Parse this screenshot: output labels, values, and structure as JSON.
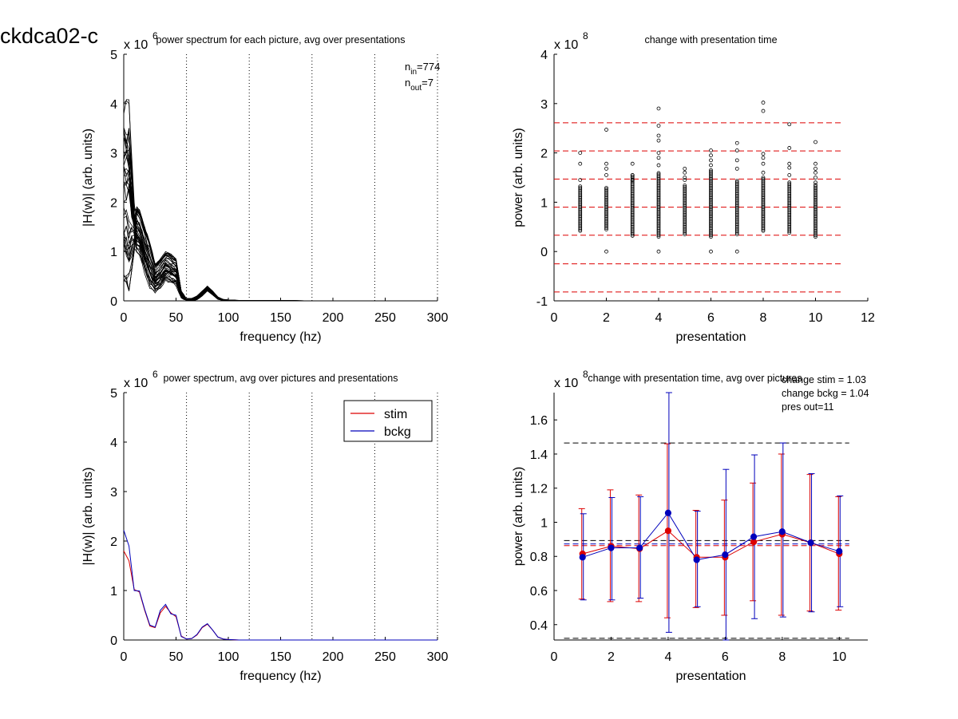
{
  "figure": {
    "title": "ckdca02-c"
  },
  "chart_data": [
    {
      "type": "line",
      "title": "power spectrum for each picture, avg over presentations",
      "xlabel": "frequency (hz)",
      "ylabel": "|H(w)| (arb. units)",
      "exponent_base": "x 10",
      "exponent_power": "6",
      "xlim": [
        0,
        300
      ],
      "ylim": [
        0,
        5
      ],
      "xticks": [
        "0",
        "50",
        "100",
        "150",
        "200",
        "250",
        "300"
      ],
      "yticks": [
        "0",
        "1",
        "2",
        "3",
        "4",
        "5"
      ],
      "vlines": [
        60,
        120,
        180,
        240,
        300
      ],
      "annotations": [
        {
          "main": "n",
          "sub": "in",
          "rest": "=774"
        },
        {
          "main": "n",
          "sub": "out",
          "rest": "=7"
        }
      ],
      "series_count": 40,
      "series_note": "many overlapping per-picture spectra (values in units of 1e6)",
      "envelope": {
        "x": [
          0,
          5,
          10,
          15,
          20,
          25,
          30,
          35,
          40,
          45,
          50,
          55,
          60,
          65,
          70,
          75,
          80,
          85,
          90,
          95,
          100,
          110,
          120,
          150,
          200,
          300
        ],
        "low": [
          0.4,
          0.2,
          1.0,
          0.9,
          0.55,
          0.25,
          0.15,
          0.25,
          0.4,
          0.35,
          0.3,
          0.05,
          0.0,
          0.0,
          0.02,
          0.1,
          0.2,
          0.12,
          0.03,
          0.01,
          0.0,
          0.0,
          0.0,
          0.0,
          0.0,
          0.0
        ],
        "high": [
          4.15,
          4.1,
          2.0,
          1.85,
          1.5,
          1.2,
          0.75,
          0.85,
          1.0,
          0.95,
          0.85,
          0.2,
          0.05,
          0.05,
          0.1,
          0.2,
          0.3,
          0.2,
          0.08,
          0.03,
          0.02,
          0.01,
          0.01,
          0.005,
          0.0,
          0.0
        ]
      }
    },
    {
      "type": "scatter",
      "title": "change with presentation time",
      "xlabel": "presentation",
      "ylabel": "power (arb. units)",
      "exponent_base": "x 10",
      "exponent_power": "8",
      "xlim": [
        0,
        12
      ],
      "ylim": [
        -1,
        4
      ],
      "xticks": [
        "0",
        "2",
        "4",
        "6",
        "8",
        "10",
        "12"
      ],
      "yticks": [
        "-1",
        "0",
        "1",
        "2",
        "3",
        "4"
      ],
      "hlines": [
        2.61,
        2.04,
        1.47,
        0.9,
        0.33,
        -0.25,
        -0.82
      ],
      "hline_color": "#dd0000",
      "hline_xrange": [
        0,
        11
      ],
      "column_note": "dense columns of points from ~0.45 to ~1.3 (units of 1e8) at each presentation",
      "columns": [
        {
          "x": 1,
          "lo": 0.42,
          "hi": 1.32
        },
        {
          "x": 2,
          "lo": 0.45,
          "hi": 1.3
        },
        {
          "x": 3,
          "lo": 0.32,
          "hi": 1.55
        },
        {
          "x": 4,
          "lo": 0.3,
          "hi": 1.6
        },
        {
          "x": 5,
          "lo": 0.35,
          "hi": 1.35
        },
        {
          "x": 6,
          "lo": 0.3,
          "hi": 1.65
        },
        {
          "x": 7,
          "lo": 0.35,
          "hi": 1.45
        },
        {
          "x": 8,
          "lo": 0.42,
          "hi": 1.5
        },
        {
          "x": 9,
          "lo": 0.38,
          "hi": 1.4
        },
        {
          "x": 10,
          "lo": 0.3,
          "hi": 1.35
        }
      ],
      "outliers": [
        [
          1,
          2.0
        ],
        [
          1,
          1.78
        ],
        [
          1,
          1.45
        ],
        [
          2,
          2.47
        ],
        [
          2,
          1.78
        ],
        [
          2,
          1.68
        ],
        [
          2,
          1.55
        ],
        [
          2,
          0.0
        ],
        [
          3,
          1.78
        ],
        [
          3,
          1.55
        ],
        [
          3,
          1.45
        ],
        [
          4,
          2.9
        ],
        [
          4,
          2.55
        ],
        [
          4,
          2.35
        ],
        [
          4,
          2.25
        ],
        [
          4,
          2.0
        ],
        [
          4,
          1.9
        ],
        [
          4,
          1.75
        ],
        [
          4,
          0.0
        ],
        [
          5,
          1.68
        ],
        [
          5,
          1.6
        ],
        [
          5,
          1.5
        ],
        [
          5,
          1.45
        ],
        [
          6,
          2.05
        ],
        [
          6,
          1.95
        ],
        [
          6,
          1.85
        ],
        [
          6,
          1.75
        ],
        [
          6,
          0.0
        ],
        [
          7,
          2.2
        ],
        [
          7,
          2.05
        ],
        [
          7,
          1.85
        ],
        [
          7,
          1.68
        ],
        [
          7,
          0.0
        ],
        [
          8,
          3.02
        ],
        [
          8,
          2.85
        ],
        [
          8,
          1.98
        ],
        [
          8,
          1.9
        ],
        [
          8,
          1.78
        ],
        [
          8,
          1.6
        ],
        [
          9,
          2.58
        ],
        [
          9,
          2.1
        ],
        [
          9,
          1.78
        ],
        [
          9,
          1.7
        ],
        [
          9,
          1.55
        ],
        [
          10,
          2.22
        ],
        [
          10,
          1.78
        ],
        [
          10,
          1.68
        ],
        [
          10,
          1.6
        ],
        [
          10,
          1.5
        ],
        [
          10,
          1.4
        ]
      ]
    },
    {
      "type": "line",
      "title": "power spectrum, avg over pictures and presentations",
      "xlabel": "frequency (hz)",
      "ylabel": "|H(w)| (arb. units)",
      "exponent_base": "x 10",
      "exponent_power": "6",
      "xlim": [
        0,
        300
      ],
      "ylim": [
        0,
        5
      ],
      "xticks": [
        "0",
        "50",
        "100",
        "150",
        "200",
        "250",
        "300"
      ],
      "yticks": [
        "0",
        "1",
        "2",
        "3",
        "4",
        "5"
      ],
      "vlines": [
        60,
        120,
        180,
        240,
        300
      ],
      "legend": [
        {
          "label": "stim",
          "color": "#dd0000"
        },
        {
          "label": "bckg",
          "color": "#0000bb"
        }
      ],
      "legend_position": "top-right",
      "x": [
        0,
        5,
        10,
        15,
        20,
        25,
        30,
        35,
        40,
        45,
        50,
        55,
        60,
        65,
        70,
        75,
        80,
        85,
        90,
        95,
        100,
        110,
        120,
        150,
        200,
        250,
        300
      ],
      "series": [
        {
          "name": "stim",
          "color": "#dd0000",
          "values": [
            1.8,
            1.6,
            1.02,
            0.97,
            0.6,
            0.28,
            0.25,
            0.55,
            0.68,
            0.55,
            0.47,
            0.08,
            0.02,
            0.03,
            0.1,
            0.25,
            0.32,
            0.2,
            0.06,
            0.02,
            0.01,
            0.0,
            0.0,
            0.0,
            0.0,
            0.0,
            0.0
          ]
        },
        {
          "name": "bckg",
          "color": "#0000bb",
          "values": [
            2.22,
            1.9,
            1.0,
            0.99,
            0.62,
            0.3,
            0.26,
            0.6,
            0.72,
            0.53,
            0.5,
            0.07,
            0.02,
            0.03,
            0.11,
            0.26,
            0.33,
            0.2,
            0.06,
            0.02,
            0.01,
            0.0,
            0.0,
            0.0,
            0.0,
            0.0,
            0.0
          ]
        }
      ]
    },
    {
      "type": "line",
      "title": "change with presentation time, avg over pictures",
      "xlabel": "presentation",
      "ylabel": "power (arb. units)",
      "exponent_base": "x 10",
      "exponent_power": "8",
      "xlim": [
        0,
        11
      ],
      "ylim": [
        0.31,
        1.76
      ],
      "xticks": [
        "0",
        "2",
        "4",
        "6",
        "8",
        "10"
      ],
      "yticks": [
        "0.4",
        "0.6",
        "0.8",
        "1",
        "1.2",
        "1.4",
        "1.6"
      ],
      "annotations": [
        "change stim = 1.03",
        "change bckg = 1.04",
        "pres out=11"
      ],
      "x": [
        1,
        2,
        3,
        4,
        5,
        6,
        7,
        8,
        9,
        10
      ],
      "series": [
        {
          "name": "stim",
          "color": "#dd0000",
          "values": [
            0.815,
            0.86,
            0.845,
            0.95,
            0.795,
            0.795,
            0.885,
            0.93,
            0.88,
            0.815
          ],
          "err_lo": [
            0.55,
            0.535,
            0.535,
            0.44,
            0.5,
            0.455,
            0.54,
            0.455,
            0.48,
            0.485
          ],
          "err_hi": [
            1.08,
            1.19,
            1.16,
            1.46,
            1.07,
            1.13,
            1.23,
            1.4,
            1.28,
            1.15
          ]
        },
        {
          "name": "bckg",
          "color": "#0000bb",
          "values": [
            0.795,
            0.85,
            0.85,
            1.055,
            0.78,
            0.81,
            0.915,
            0.945,
            0.88,
            0.83
          ],
          "err_lo": [
            0.545,
            0.545,
            0.555,
            0.355,
            0.505,
            0.31,
            0.435,
            0.445,
            0.475,
            0.505
          ],
          "err_hi": [
            1.05,
            1.145,
            1.15,
            1.76,
            1.065,
            1.31,
            1.395,
            1.465,
            1.285,
            1.155
          ]
        }
      ],
      "hlines": [
        {
          "y": 1.465,
          "color": "#000000",
          "x0": 0.35,
          "x1": 10.35
        },
        {
          "y": 0.32,
          "color": "#000000",
          "x0": 0.35,
          "x1": 10.35
        },
        {
          "y": 0.893,
          "color": "#000000",
          "x0": 0.35,
          "x1": 10.35
        },
        {
          "y": 0.873,
          "color": "#0000bb",
          "x0": 0.35,
          "x1": 10.35
        },
        {
          "y": 0.863,
          "color": "#dd0000",
          "x0": 0.35,
          "x1": 10.35
        }
      ]
    }
  ]
}
